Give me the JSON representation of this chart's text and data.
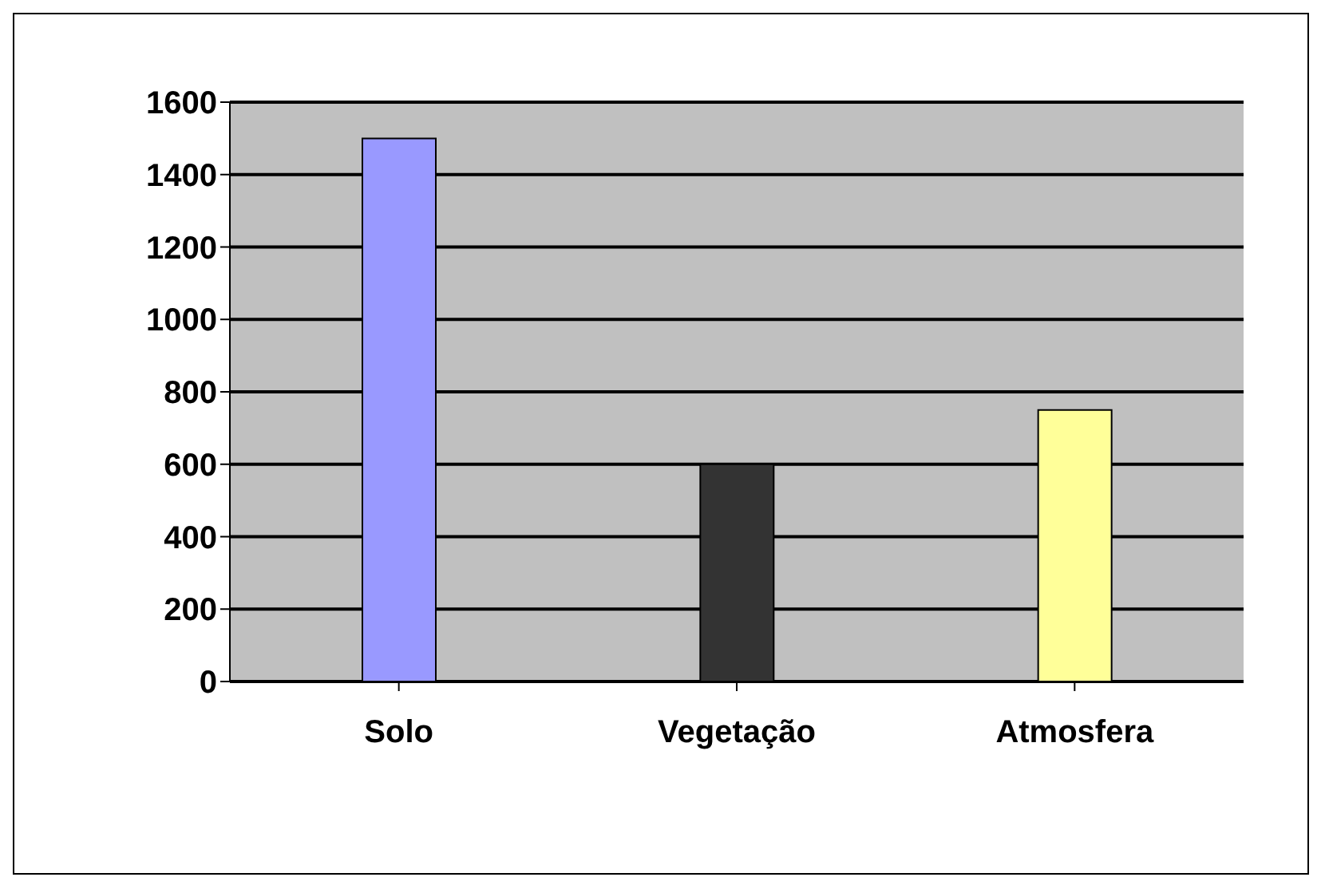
{
  "chart_data": {
    "type": "bar",
    "categories": [
      "Solo",
      "Vegetação",
      "Atmosfera"
    ],
    "values": [
      1500,
      600,
      750
    ],
    "colors": [
      "#9999ff",
      "#333333",
      "#ffff99"
    ],
    "ylim": [
      0,
      1600
    ],
    "yticks": [
      0,
      200,
      400,
      600,
      800,
      1000,
      1200,
      1400,
      1600
    ],
    "grid": "y"
  }
}
